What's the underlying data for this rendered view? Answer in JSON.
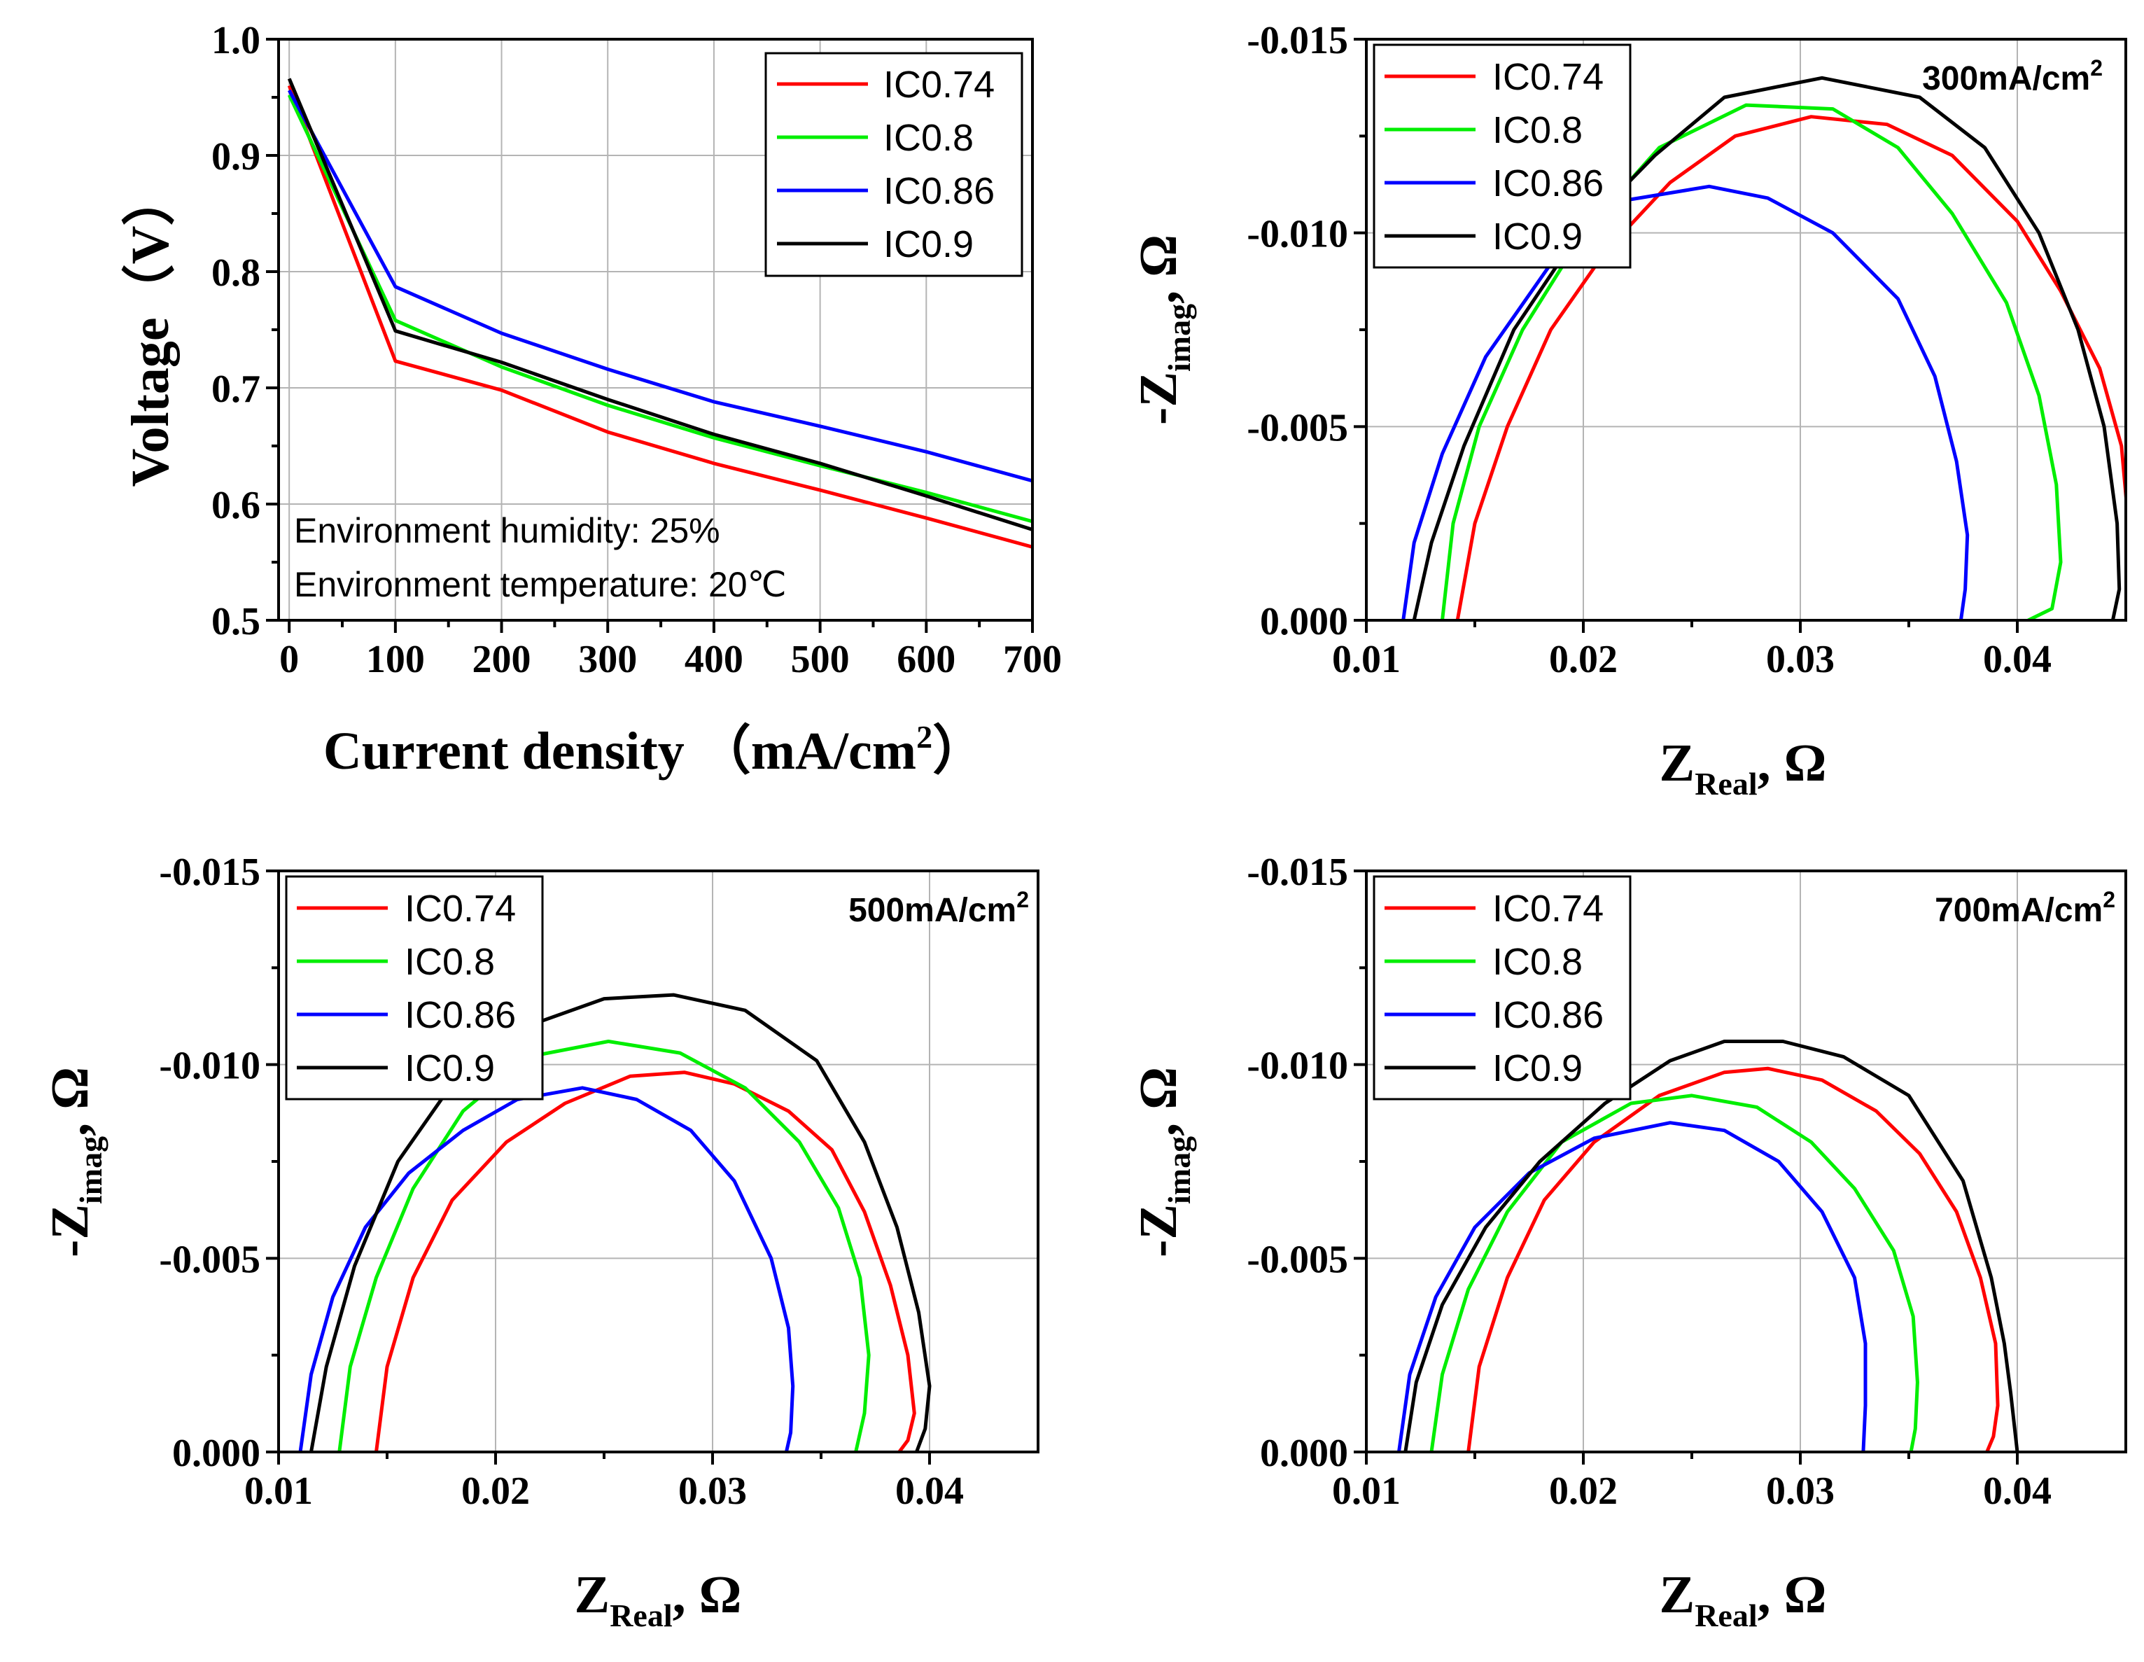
{
  "colors": {
    "IC0.74": "#ff0000",
    "IC0.8": "#00ee00",
    "IC0.86": "#0000ff",
    "IC0.9": "#000000"
  },
  "chart_data": [
    {
      "id": "polarization",
      "type": "line",
      "title": "",
      "xlabel": "Current density （mA/cm",
      "xlabel_sup": "2",
      "xlabel_end": "）",
      "ylabel": "Voltage（V）",
      "xlim": [
        -10,
        700
      ],
      "ylim": [
        0.5,
        1.0
      ],
      "xticks": [
        0,
        100,
        200,
        300,
        400,
        500,
        600,
        700
      ],
      "xtick_labels": [
        "0",
        "100",
        "200",
        "300",
        "400",
        "500",
        "600",
        "700"
      ],
      "yticks": [
        0.5,
        0.6,
        0.7,
        0.8,
        0.9,
        1.0
      ],
      "ytick_labels": [
        "0.5",
        "0.6",
        "0.7",
        "0.8",
        "0.9",
        "1.0"
      ],
      "grid": true,
      "legend_position": "top-right",
      "annotations": [
        "Environment humidity: 25%",
        "Environment temperature: 20℃"
      ],
      "series": [
        {
          "name": "IC0.74",
          "x": [
            0,
            100,
            200,
            300,
            400,
            500,
            600,
            700
          ],
          "values": [
            0.96,
            0.723,
            0.698,
            0.662,
            0.635,
            0.612,
            0.588,
            0.563
          ]
        },
        {
          "name": "IC0.8",
          "x": [
            0,
            100,
            200,
            300,
            400,
            500,
            600,
            700
          ],
          "values": [
            0.952,
            0.758,
            0.718,
            0.685,
            0.657,
            0.633,
            0.61,
            0.585
          ]
        },
        {
          "name": "IC0.86",
          "x": [
            0,
            100,
            200,
            300,
            400,
            500,
            600,
            700
          ],
          "values": [
            0.956,
            0.787,
            0.747,
            0.716,
            0.688,
            0.667,
            0.645,
            0.62
          ]
        },
        {
          "name": "IC0.9",
          "x": [
            0,
            100,
            200,
            300,
            400,
            500,
            600,
            700
          ],
          "values": [
            0.966,
            0.749,
            0.722,
            0.69,
            0.66,
            0.635,
            0.607,
            0.578
          ]
        }
      ]
    },
    {
      "id": "eis-300",
      "type": "line",
      "title": "300mA/cm",
      "title_sup": "2",
      "xlabel": "Z",
      "xlabel_sub": "Real",
      "xlabel_end": ", Ω",
      "ylabel": "-Z",
      "ylabel_sub": "imag",
      "ylabel_end": ", Ω",
      "xlim": [
        0.01,
        0.045
      ],
      "ylim": [
        0.0,
        0.015
      ],
      "xticks": [
        0.01,
        0.02,
        0.03,
        0.04
      ],
      "xtick_labels": [
        "0.01",
        "0.02",
        "0.03",
        "0.04"
      ],
      "yticks": [
        0.0,
        0.005,
        0.01,
        0.015
      ],
      "ytick_labels": [
        "0.000",
        "-0.005",
        "-0.010",
        "-0.015"
      ],
      "grid": true,
      "legend_position": "top-left",
      "series": [
        {
          "name": "IC0.74",
          "x": [
            0.0142,
            0.015,
            0.0165,
            0.0185,
            0.021,
            0.024,
            0.027,
            0.0305,
            0.034,
            0.037,
            0.04,
            0.042,
            0.0438,
            0.0448,
            0.0452,
            0.0451
          ],
          "values": [
            0.0,
            0.0025,
            0.005,
            0.0075,
            0.0095,
            0.0113,
            0.0125,
            0.013,
            0.0128,
            0.012,
            0.0103,
            0.0085,
            0.0065,
            0.0045,
            0.002,
            0.0
          ]
        },
        {
          "name": "IC0.8",
          "x": [
            0.0135,
            0.014,
            0.0152,
            0.0172,
            0.02,
            0.0235,
            0.0275,
            0.0315,
            0.0345,
            0.037,
            0.0395,
            0.041,
            0.0418,
            0.042,
            0.0416,
            0.0405
          ],
          "values": [
            0.0,
            0.0025,
            0.005,
            0.0075,
            0.01,
            0.0122,
            0.0133,
            0.0132,
            0.0122,
            0.0105,
            0.0082,
            0.0058,
            0.0035,
            0.0015,
            0.0003,
            0.0
          ]
        },
        {
          "name": "IC0.86",
          "x": [
            0.0117,
            0.0122,
            0.0135,
            0.0155,
            0.0185,
            0.0215,
            0.0258,
            0.0285,
            0.0315,
            0.0345,
            0.0362,
            0.0372,
            0.0377,
            0.0376,
            0.0374
          ],
          "values": [
            0.0,
            0.002,
            0.0043,
            0.0068,
            0.0092,
            0.0108,
            0.0112,
            0.0109,
            0.01,
            0.0083,
            0.0063,
            0.0041,
            0.0022,
            0.0008,
            0.0
          ]
        },
        {
          "name": "IC0.9",
          "x": [
            0.0122,
            0.013,
            0.0145,
            0.0168,
            0.0198,
            0.0233,
            0.0265,
            0.031,
            0.0355,
            0.0385,
            0.041,
            0.0428,
            0.044,
            0.0446,
            0.0447,
            0.0444
          ],
          "values": [
            0.0,
            0.002,
            0.0045,
            0.0075,
            0.01,
            0.012,
            0.0135,
            0.014,
            0.0135,
            0.0122,
            0.01,
            0.0075,
            0.005,
            0.0025,
            0.0008,
            0.0
          ]
        }
      ]
    },
    {
      "id": "eis-500",
      "type": "line",
      "title": "500mA/cm",
      "title_sup": "2",
      "xlabel": "Z",
      "xlabel_sub": "Real",
      "xlabel_end": ", Ω",
      "ylabel": "-Z",
      "ylabel_sub": "imag",
      "ylabel_end": ", Ω",
      "xlim": [
        0.01,
        0.045
      ],
      "ylim": [
        0.0,
        0.015
      ],
      "xticks": [
        0.01,
        0.02,
        0.03,
        0.04
      ],
      "xtick_labels": [
        "0.01",
        "0.02",
        "0.03",
        "0.04"
      ],
      "yticks": [
        0.0,
        0.005,
        0.01,
        0.015
      ],
      "ytick_labels": [
        "0.000",
        "-0.005",
        "-0.010",
        "-0.015"
      ],
      "grid": true,
      "legend_position": "top-left",
      "series": [
        {
          "name": "IC0.74",
          "x": [
            0.0145,
            0.015,
            0.0162,
            0.018,
            0.0205,
            0.0232,
            0.0262,
            0.0287,
            0.031,
            0.0335,
            0.0355,
            0.037,
            0.0382,
            0.039,
            0.0393,
            0.039,
            0.0386
          ],
          "values": [
            0.0,
            0.0022,
            0.0045,
            0.0065,
            0.008,
            0.009,
            0.0097,
            0.0098,
            0.0095,
            0.0088,
            0.0078,
            0.0062,
            0.0043,
            0.0025,
            0.001,
            0.0003,
            0.0
          ]
        },
        {
          "name": "IC0.8",
          "x": [
            0.0128,
            0.0133,
            0.0145,
            0.0162,
            0.0185,
            0.0215,
            0.0252,
            0.0285,
            0.0315,
            0.034,
            0.0358,
            0.0368,
            0.0372,
            0.037,
            0.0366
          ],
          "values": [
            0.0,
            0.0022,
            0.0045,
            0.0068,
            0.0088,
            0.0102,
            0.0106,
            0.0103,
            0.0094,
            0.008,
            0.0063,
            0.0045,
            0.0025,
            0.001,
            0.0
          ]
        },
        {
          "name": "IC0.86",
          "x": [
            0.011,
            0.0115,
            0.0125,
            0.014,
            0.016,
            0.0185,
            0.021,
            0.024,
            0.0265,
            0.029,
            0.031,
            0.0327,
            0.0335,
            0.0337,
            0.0336,
            0.0334
          ],
          "values": [
            0.0,
            0.002,
            0.004,
            0.0058,
            0.0072,
            0.0083,
            0.0091,
            0.0094,
            0.0091,
            0.0083,
            0.007,
            0.005,
            0.0032,
            0.0017,
            0.0005,
            0.0
          ]
        },
        {
          "name": "IC0.9",
          "x": [
            0.0115,
            0.0122,
            0.0135,
            0.0155,
            0.018,
            0.0215,
            0.025,
            0.0282,
            0.0315,
            0.0348,
            0.037,
            0.0385,
            0.0395,
            0.04,
            0.0398,
            0.0394
          ],
          "values": [
            0.0,
            0.0022,
            0.0048,
            0.0075,
            0.0095,
            0.011,
            0.0117,
            0.0118,
            0.0114,
            0.0101,
            0.008,
            0.0058,
            0.0036,
            0.0017,
            0.0006,
            0.0
          ]
        }
      ]
    },
    {
      "id": "eis-700",
      "type": "line",
      "title": "700mA/cm",
      "title_sup": "2",
      "xlabel": "Z",
      "xlabel_sub": "Real",
      "xlabel_end": ", Ω",
      "ylabel": "-Z",
      "ylabel_sub": "imag",
      "ylabel_end": ", Ω",
      "xlim": [
        0.01,
        0.045
      ],
      "ylim": [
        0.0,
        0.015
      ],
      "xticks": [
        0.01,
        0.02,
        0.03,
        0.04
      ],
      "xtick_labels": [
        "0.01",
        "0.02",
        "0.03",
        "0.04"
      ],
      "yticks": [
        0.0,
        0.005,
        0.01,
        0.015
      ],
      "ytick_labels": [
        "0.000",
        "-0.005",
        "-0.010",
        "-0.015"
      ],
      "grid": true,
      "legend_position": "top-left",
      "series": [
        {
          "name": "IC0.74",
          "x": [
            0.0147,
            0.0152,
            0.0165,
            0.0182,
            0.0205,
            0.0235,
            0.0265,
            0.0285,
            0.031,
            0.0335,
            0.0355,
            0.0372,
            0.0383,
            0.039,
            0.0391,
            0.0389,
            0.0386
          ],
          "values": [
            0.0,
            0.0022,
            0.0045,
            0.0065,
            0.008,
            0.0092,
            0.0098,
            0.0099,
            0.0096,
            0.0088,
            0.0077,
            0.0062,
            0.0045,
            0.0028,
            0.0012,
            0.0004,
            0.0
          ]
        },
        {
          "name": "IC0.8",
          "x": [
            0.013,
            0.0135,
            0.0147,
            0.0165,
            0.019,
            0.0222,
            0.025,
            0.028,
            0.0305,
            0.0325,
            0.0343,
            0.0352,
            0.0354,
            0.0353,
            0.0351
          ],
          "values": [
            0.0,
            0.002,
            0.0042,
            0.0062,
            0.008,
            0.009,
            0.0092,
            0.0089,
            0.008,
            0.0068,
            0.0052,
            0.0035,
            0.0018,
            0.0006,
            0.0
          ]
        },
        {
          "name": "IC0.86",
          "x": [
            0.0115,
            0.012,
            0.0132,
            0.015,
            0.0175,
            0.0205,
            0.024,
            0.0265,
            0.029,
            0.031,
            0.0325,
            0.033,
            0.033,
            0.0329
          ],
          "values": [
            0.0,
            0.002,
            0.004,
            0.0058,
            0.0072,
            0.0081,
            0.0085,
            0.0083,
            0.0075,
            0.0062,
            0.0045,
            0.0028,
            0.0012,
            0.0
          ]
        },
        {
          "name": "IC0.9",
          "x": [
            0.0118,
            0.0123,
            0.0135,
            0.0155,
            0.018,
            0.021,
            0.024,
            0.0265,
            0.0292,
            0.032,
            0.035,
            0.0375,
            0.0388,
            0.0394,
            0.0397,
            0.0399,
            0.04
          ],
          "values": [
            0.0,
            0.0018,
            0.0038,
            0.0058,
            0.0075,
            0.009,
            0.0101,
            0.0106,
            0.0106,
            0.0102,
            0.0092,
            0.007,
            0.0045,
            0.0028,
            0.0015,
            0.0005,
            0.0
          ]
        }
      ]
    }
  ]
}
